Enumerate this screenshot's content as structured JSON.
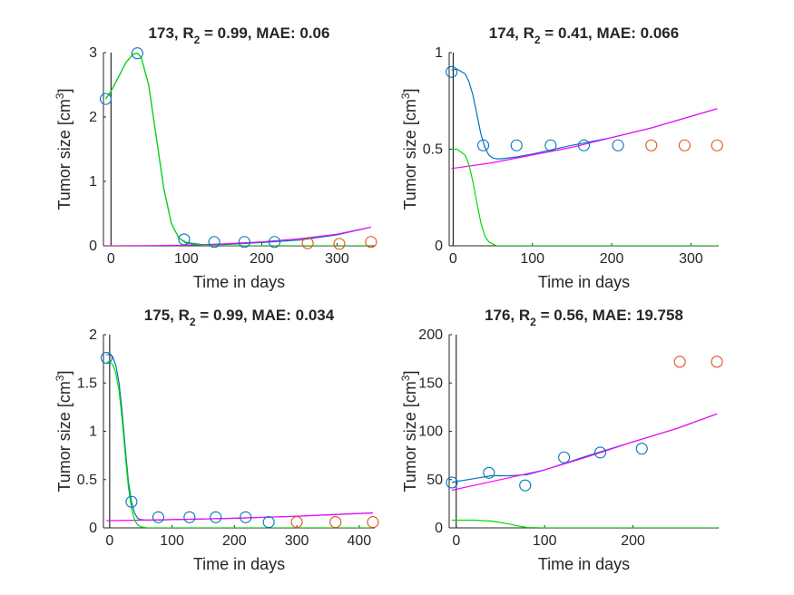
{
  "colors": {
    "observed": "#0072BD",
    "held_out": "#D95319",
    "fit": "#0072BD",
    "sensitive": "#00DD00",
    "resistant": "#FF00FF",
    "axis": "#262626"
  },
  "chart_data": [
    {
      "type": "line",
      "panel": "173",
      "title": {
        "id": "173, R",
        "sub": "2",
        "rest": " = 0.99, MAE: 0.06"
      },
      "xlabel": "Time in days",
      "ylabel": {
        "main": "Tumor size [cm",
        "sup": "3",
        "close": "]"
      },
      "xlim": [
        -10,
        350
      ],
      "ylim": [
        0,
        3
      ],
      "xticks": [
        0,
        100,
        200,
        300
      ],
      "yticks": [
        0,
        1,
        2,
        3
      ],
      "observed": {
        "x": [
          -7,
          35,
          97,
          137,
          177,
          217
        ],
        "y": [
          2.28,
          2.99,
          0.1,
          0.06,
          0.06,
          0.06
        ]
      },
      "held_out": {
        "x": [
          261,
          303,
          345
        ],
        "y": [
          0.04,
          0.03,
          0.06
        ]
      },
      "fit": {
        "x": [
          -7,
          0,
          10,
          20,
          30,
          35,
          40,
          50,
          60,
          70,
          80,
          90,
          100,
          120,
          150,
          200,
          250,
          300,
          345
        ],
        "y": [
          2.28,
          2.4,
          2.62,
          2.85,
          2.98,
          2.99,
          2.93,
          2.5,
          1.7,
          0.9,
          0.35,
          0.12,
          0.05,
          0.02,
          0.02,
          0.05,
          0.09,
          0.17,
          0.29
        ]
      },
      "sensitive": {
        "x": [
          -7,
          0,
          10,
          20,
          30,
          35,
          40,
          50,
          60,
          70,
          80,
          90,
          100,
          120,
          150,
          200,
          345
        ],
        "y": [
          2.28,
          2.4,
          2.62,
          2.85,
          2.98,
          2.99,
          2.93,
          2.5,
          1.7,
          0.9,
          0.35,
          0.12,
          0.04,
          0.01,
          0.0,
          0.0,
          0.0
        ]
      },
      "resistant": {
        "x": [
          -7,
          50,
          100,
          150,
          200,
          250,
          300,
          345
        ],
        "y": [
          0.0,
          0.002,
          0.01,
          0.03,
          0.06,
          0.11,
          0.18,
          0.29
        ]
      }
    },
    {
      "type": "line",
      "panel": "174",
      "title": {
        "id": "174, R",
        "sub": "2",
        "rest": " = 0.41, MAE: 0.066"
      },
      "xlabel": "Time in days",
      "ylabel": {
        "main": "Tumor size [cm",
        "sup": "3",
        "close": "]"
      },
      "xlim": [
        -5,
        335
      ],
      "ylim": [
        0,
        1
      ],
      "xticks": [
        0,
        100,
        200,
        300
      ],
      "yticks": [
        0,
        0.5,
        1
      ],
      "observed": {
        "x": [
          -2,
          38,
          80,
          123,
          165,
          208
        ],
        "y": [
          0.9,
          0.52,
          0.52,
          0.52,
          0.52,
          0.52
        ]
      },
      "held_out": {
        "x": [
          250,
          292,
          333
        ],
        "y": [
          0.52,
          0.52,
          0.52
        ]
      },
      "fit": {
        "x": [
          -2,
          5,
          15,
          20,
          25,
          30,
          35,
          40,
          45,
          50,
          55,
          60,
          70,
          80,
          100,
          150,
          200,
          250,
          300,
          333
        ],
        "y": [
          0.91,
          0.915,
          0.89,
          0.85,
          0.78,
          0.68,
          0.58,
          0.51,
          0.47,
          0.455,
          0.45,
          0.45,
          0.455,
          0.46,
          0.475,
          0.52,
          0.56,
          0.61,
          0.67,
          0.71
        ]
      },
      "sensitive": {
        "x": [
          -2,
          5,
          15,
          20,
          25,
          30,
          35,
          40,
          45,
          50,
          55,
          60,
          70,
          80,
          333
        ],
        "y": [
          0.5,
          0.5,
          0.47,
          0.42,
          0.33,
          0.22,
          0.12,
          0.05,
          0.02,
          0.01,
          0.0,
          0.0,
          0.0,
          0.0,
          0.0
        ]
      },
      "resistant": {
        "x": [
          -2,
          50,
          100,
          150,
          200,
          250,
          300,
          333
        ],
        "y": [
          0.4,
          0.43,
          0.47,
          0.51,
          0.56,
          0.61,
          0.67,
          0.71
        ]
      }
    },
    {
      "type": "line",
      "panel": "175",
      "title": {
        "id": "175, R",
        "sub": "2",
        "rest": " = 0.99, MAE: 0.034"
      },
      "xlabel": "Time in days",
      "ylabel": {
        "main": "Tumor size [cm",
        "sup": "3",
        "close": "]"
      },
      "xlim": [
        -10,
        425
      ],
      "ylim": [
        0,
        2
      ],
      "xticks": [
        0,
        100,
        200,
        300,
        400
      ],
      "yticks": [
        0,
        0.5,
        1,
        1.5,
        2
      ],
      "observed": {
        "x": [
          -5,
          35,
          78,
          128,
          170,
          218,
          255
        ],
        "y": [
          1.76,
          0.27,
          0.11,
          0.11,
          0.11,
          0.11,
          0.06
        ]
      },
      "held_out": {
        "x": [
          300,
          362,
          422
        ],
        "y": [
          0.06,
          0.06,
          0.06
        ]
      },
      "fit": {
        "x": [
          -5,
          0,
          5,
          10,
          15,
          20,
          25,
          30,
          35,
          40,
          45,
          50,
          60,
          80,
          100,
          150,
          200,
          250,
          300,
          350,
          422
        ],
        "y": [
          1.79,
          1.8,
          1.77,
          1.68,
          1.5,
          1.2,
          0.82,
          0.48,
          0.27,
          0.15,
          0.1,
          0.085,
          0.08,
          0.082,
          0.085,
          0.092,
          0.1,
          0.11,
          0.12,
          0.135,
          0.155
        ]
      },
      "sensitive": {
        "x": [
          -5,
          0,
          5,
          10,
          15,
          20,
          25,
          30,
          35,
          40,
          45,
          50,
          60,
          80,
          422
        ],
        "y": [
          1.72,
          1.72,
          1.69,
          1.6,
          1.42,
          1.12,
          0.75,
          0.42,
          0.2,
          0.08,
          0.03,
          0.01,
          0.0,
          0.0,
          0.0
        ]
      },
      "resistant": {
        "x": [
          -5,
          50,
          100,
          150,
          200,
          250,
          300,
          350,
          422
        ],
        "y": [
          0.075,
          0.08,
          0.085,
          0.092,
          0.1,
          0.11,
          0.12,
          0.135,
          0.155
        ]
      }
    },
    {
      "type": "line",
      "panel": "176",
      "title": {
        "id": "176, R",
        "sub": "2",
        "rest": " = 0.56, MAE: 19.758"
      },
      "xlabel": "Time in days",
      "ylabel": {
        "main": "Tumor size [cm",
        "sup": "3",
        "close": "]"
      },
      "xlim": [
        -8,
        297
      ],
      "ylim": [
        0,
        200
      ],
      "xticks": [
        0,
        100,
        200
      ],
      "yticks": [
        0,
        50,
        100,
        150,
        200
      ],
      "observed": {
        "x": [
          -5,
          37,
          78,
          122,
          163,
          210
        ],
        "y": [
          47,
          57,
          44,
          73,
          78,
          82
        ]
      },
      "held_out": {
        "x": [
          253,
          295
        ],
        "y": [
          172,
          172
        ]
      },
      "fit": {
        "x": [
          -5,
          0,
          20,
          40,
          60,
          80,
          100,
          150,
          200,
          250,
          295
        ],
        "y": [
          47,
          48,
          51,
          54,
          54,
          55,
          60,
          75,
          89,
          103,
          118
        ]
      },
      "sensitive": {
        "x": [
          -5,
          20,
          40,
          60,
          70,
          80,
          100,
          295
        ],
        "y": [
          8,
          8,
          7,
          4,
          2,
          0.5,
          0,
          0
        ]
      },
      "resistant": {
        "x": [
          -5,
          50,
          100,
          150,
          200,
          250,
          295
        ],
        "y": [
          39,
          50,
          60,
          74,
          89,
          103,
          118
        ]
      }
    }
  ]
}
